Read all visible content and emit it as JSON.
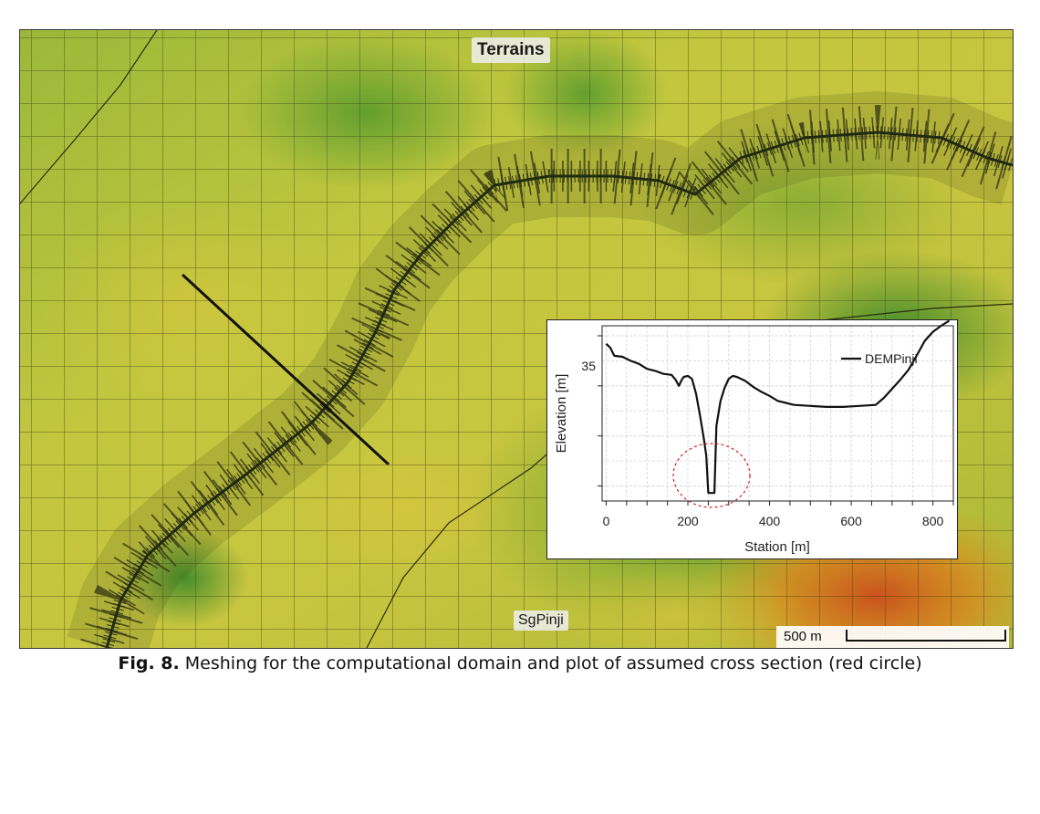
{
  "map": {
    "terrain_label": "Terrains",
    "river_label": "SgPinji",
    "scale_label": "500 m",
    "colors": {
      "low": "#5f9e2b",
      "mid": "#b7c43a",
      "high": "#e0c23a",
      "peak": "#c8501e",
      "mesh": "#3b3d18",
      "river": "#1f2a12"
    }
  },
  "chart_data": {
    "type": "line",
    "xlabel": "Station [m]",
    "ylabel": "Elevation [m]",
    "xlim": [
      -10,
      850
    ],
    "x_ticks": [
      0,
      200,
      400,
      600,
      800
    ],
    "y_tick_labels": [
      {
        "value": 35,
        "label": "35"
      }
    ],
    "ylim": [
      21.5,
      39
    ],
    "grid": true,
    "legend_position": "top-right",
    "series": [
      {
        "name": "DEMPinji",
        "color": "#111111",
        "x": [
          0,
          10,
          20,
          40,
          60,
          80,
          100,
          120,
          140,
          160,
          170,
          178,
          185,
          190,
          200,
          210,
          220,
          230,
          240,
          245,
          250,
          255,
          260,
          265,
          270,
          280,
          290,
          300,
          310,
          320,
          340,
          360,
          380,
          400,
          420,
          440,
          460,
          500,
          540,
          580,
          620,
          660,
          680,
          700,
          720,
          740,
          760,
          780,
          800,
          820,
          840
        ],
        "y": [
          37.2,
          36.8,
          36.0,
          35.9,
          35.5,
          35.2,
          34.7,
          34.5,
          34.2,
          34.1,
          33.6,
          33.0,
          33.6,
          33.9,
          34.0,
          33.7,
          32.2,
          30.0,
          27.5,
          26.0,
          22.3,
          22.3,
          22.3,
          22.3,
          29.0,
          31.5,
          32.8,
          33.7,
          34.0,
          33.9,
          33.5,
          32.9,
          32.4,
          32.0,
          31.5,
          31.3,
          31.1,
          31.0,
          30.9,
          30.9,
          31.0,
          31.1,
          31.8,
          32.7,
          33.6,
          34.6,
          36.0,
          37.5,
          38.4,
          39.0,
          39.5
        ]
      }
    ]
  },
  "caption": {
    "label": "Fig. 8.",
    "text": " Meshing for the computational domain and plot of assumed cross section (red circle)"
  }
}
